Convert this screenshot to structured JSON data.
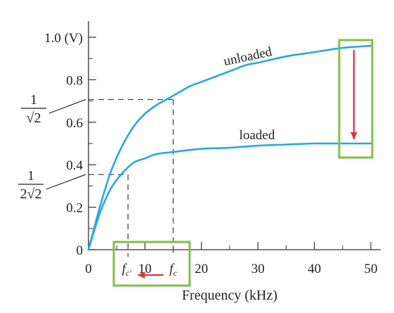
{
  "chart_data": {
    "type": "line",
    "xlabel": "Frequency (kHz)",
    "xlim": [
      0,
      50
    ],
    "ylim": [
      0,
      1.0
    ],
    "x_ticks": [
      0,
      10,
      20,
      30,
      40,
      50
    ],
    "y_ticks": [
      {
        "value": 0,
        "label": "0"
      },
      {
        "value": 0.2,
        "label": "0.2"
      },
      {
        "value": 0.4,
        "label": "0.4"
      },
      {
        "value": 0.6,
        "label": "0.6"
      },
      {
        "value": 0.8,
        "label": "0.8"
      },
      {
        "value": 1.0,
        "label": "1.0 (V)"
      }
    ],
    "series": [
      {
        "name": "unloaded",
        "color": "#29a7e1",
        "x": [
          0,
          2,
          4,
          6,
          8,
          10,
          12,
          14,
          16,
          18,
          20,
          22,
          25,
          28,
          30,
          35,
          40,
          45,
          50
        ],
        "y": [
          0,
          0.2,
          0.37,
          0.49,
          0.58,
          0.64,
          0.68,
          0.71,
          0.74,
          0.77,
          0.79,
          0.81,
          0.84,
          0.87,
          0.88,
          0.91,
          0.93,
          0.95,
          0.96
        ]
      },
      {
        "name": "loaded",
        "color": "#29a7e1",
        "x": [
          0,
          2,
          4,
          6,
          8,
          10,
          12,
          15,
          20,
          25,
          30,
          35,
          40,
          45,
          50
        ],
        "y": [
          0,
          0.17,
          0.29,
          0.36,
          0.41,
          0.43,
          0.45,
          0.46,
          0.475,
          0.48,
          0.49,
          0.495,
          0.5,
          0.5,
          0.5
        ]
      }
    ],
    "annotations": {
      "unloaded_level": {
        "value": 0.707,
        "x_at": 15,
        "numerator": "1",
        "denominator": "√2"
      },
      "loaded_level": {
        "value": 0.354,
        "x_at": 7,
        "numerator": "1",
        "denominator": "2√2"
      },
      "fc": {
        "value": 15,
        "label_main": "f",
        "label_sub": "c"
      },
      "fc_prime": {
        "value": 7,
        "label_main": "f",
        "label_sub": "c'"
      },
      "highlight_color": "#7dc242",
      "arrow_color": "#e53030",
      "arrow_from": 0.96,
      "arrow_to": 0.5,
      "arrow_x": 47
    }
  }
}
